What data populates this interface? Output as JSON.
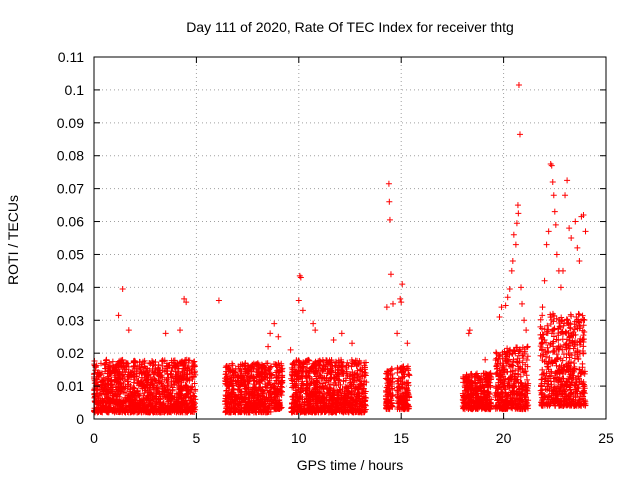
{
  "chart_data": {
    "type": "scatter",
    "title": "Day 111 of 2020, Rate Of TEC Index for receiver thtg",
    "xlabel": "GPS time / hours",
    "ylabel": "ROTI / TECUs",
    "xlim": [
      0,
      25
    ],
    "ylim": [
      0,
      0.11
    ],
    "xticks": [
      0,
      5,
      10,
      15,
      20,
      25
    ],
    "xtick_labels": [
      "0",
      "5",
      "10",
      "15",
      "20",
      "25"
    ],
    "yticks": [
      0,
      0.01,
      0.02,
      0.03,
      0.04,
      0.05,
      0.06,
      0.07,
      0.08,
      0.09,
      0.1,
      0.11
    ],
    "ytick_labels": [
      "0",
      "0.01",
      "0.02",
      "0.03",
      "0.04",
      "0.05",
      "0.06",
      "0.07",
      "0.08",
      "0.09",
      "0.1",
      "0.11"
    ],
    "grid": true,
    "marker": "+",
    "color": "#ff0000",
    "dense_segments": [
      {
        "start": 0.0,
        "end": 4.95,
        "low": 0.002,
        "high": 0.018
      },
      {
        "start": 6.4,
        "end": 8.7,
        "low": 0.002,
        "high": 0.017
      },
      {
        "start": 8.75,
        "end": 9.2,
        "low": 0.003,
        "high": 0.017
      },
      {
        "start": 9.6,
        "end": 13.3,
        "low": 0.002,
        "high": 0.018
      },
      {
        "start": 14.25,
        "end": 14.6,
        "low": 0.003,
        "high": 0.016
      },
      {
        "start": 14.8,
        "end": 15.4,
        "low": 0.003,
        "high": 0.016
      },
      {
        "start": 18.0,
        "end": 19.4,
        "low": 0.003,
        "high": 0.014
      },
      {
        "start": 19.6,
        "end": 21.2,
        "low": 0.003,
        "high": 0.022
      },
      {
        "start": 21.8,
        "end": 24.0,
        "low": 0.004,
        "high": 0.032
      }
    ],
    "points": [
      [
        1.2,
        0.0315
      ],
      [
        1.4,
        0.0395
      ],
      [
        1.7,
        0.027
      ],
      [
        3.5,
        0.026
      ],
      [
        4.2,
        0.027
      ],
      [
        4.4,
        0.0365
      ],
      [
        4.5,
        0.0355
      ],
      [
        6.1,
        0.036
      ],
      [
        8.5,
        0.022
      ],
      [
        8.6,
        0.026
      ],
      [
        8.8,
        0.029
      ],
      [
        9.0,
        0.025
      ],
      [
        9.6,
        0.021
      ],
      [
        10.0,
        0.036
      ],
      [
        10.05,
        0.0435
      ],
      [
        10.1,
        0.043
      ],
      [
        10.2,
        0.033
      ],
      [
        10.7,
        0.029
      ],
      [
        10.8,
        0.027
      ],
      [
        11.7,
        0.024
      ],
      [
        12.1,
        0.026
      ],
      [
        12.6,
        0.023
      ],
      [
        14.3,
        0.034
      ],
      [
        14.4,
        0.0715
      ],
      [
        14.42,
        0.066
      ],
      [
        14.45,
        0.0605
      ],
      [
        14.5,
        0.044
      ],
      [
        14.6,
        0.035
      ],
      [
        14.8,
        0.026
      ],
      [
        14.95,
        0.0365
      ],
      [
        15.0,
        0.0355
      ],
      [
        15.05,
        0.041
      ],
      [
        15.3,
        0.023
      ],
      [
        18.3,
        0.026
      ],
      [
        18.35,
        0.027
      ],
      [
        19.1,
        0.018
      ],
      [
        19.8,
        0.031
      ],
      [
        19.9,
        0.034
      ],
      [
        20.1,
        0.0345
      ],
      [
        20.2,
        0.037
      ],
      [
        20.3,
        0.0395
      ],
      [
        20.4,
        0.045
      ],
      [
        20.45,
        0.048
      ],
      [
        20.5,
        0.056
      ],
      [
        20.6,
        0.053
      ],
      [
        20.65,
        0.0595
      ],
      [
        20.7,
        0.065
      ],
      [
        20.72,
        0.0625
      ],
      [
        20.75,
        0.1015
      ],
      [
        20.8,
        0.0865
      ],
      [
        20.85,
        0.04
      ],
      [
        20.9,
        0.035
      ],
      [
        21.0,
        0.03
      ],
      [
        21.1,
        0.027
      ],
      [
        21.8,
        0.028
      ],
      [
        21.9,
        0.034
      ],
      [
        22.0,
        0.042
      ],
      [
        22.1,
        0.053
      ],
      [
        22.2,
        0.057
      ],
      [
        22.3,
        0.0775
      ],
      [
        22.35,
        0.077
      ],
      [
        22.4,
        0.072
      ],
      [
        22.45,
        0.068
      ],
      [
        22.5,
        0.063
      ],
      [
        22.55,
        0.059
      ],
      [
        22.6,
        0.05
      ],
      [
        22.7,
        0.045
      ],
      [
        22.8,
        0.04
      ],
      [
        22.9,
        0.045
      ],
      [
        23.0,
        0.068
      ],
      [
        23.1,
        0.0725
      ],
      [
        23.2,
        0.058
      ],
      [
        23.3,
        0.055
      ],
      [
        23.5,
        0.06
      ],
      [
        23.6,
        0.052
      ],
      [
        23.7,
        0.048
      ],
      [
        23.8,
        0.0615
      ],
      [
        23.9,
        0.062
      ],
      [
        24.0,
        0.057
      ]
    ]
  }
}
